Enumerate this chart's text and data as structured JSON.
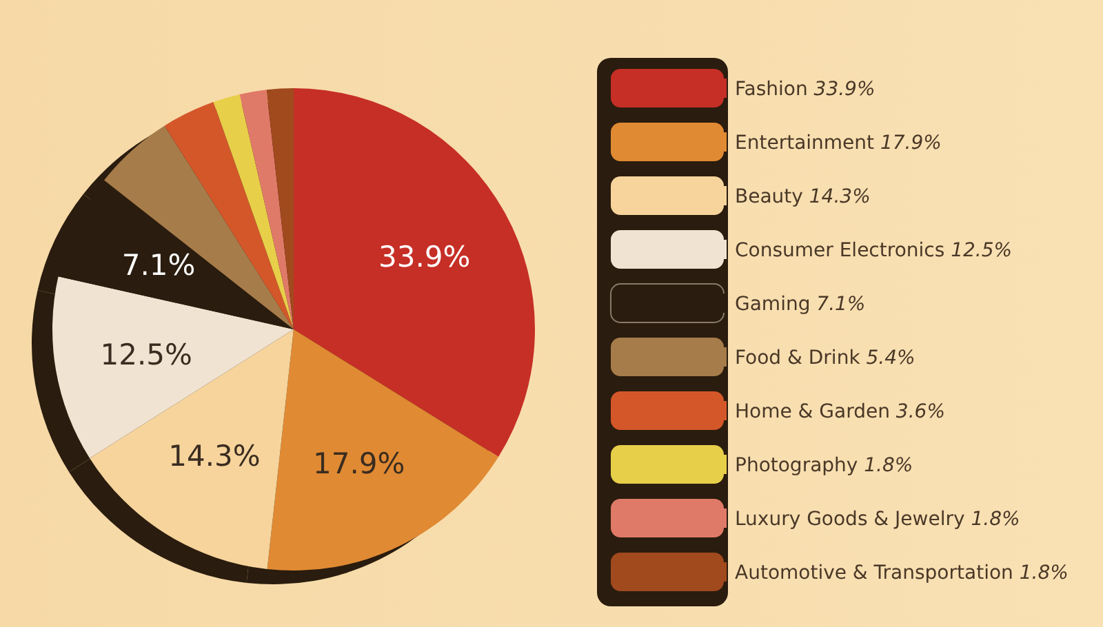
{
  "chart_data": {
    "type": "pie",
    "categories": [
      "Fashion",
      "Entertainment",
      "Beauty",
      "Consumer Electronics",
      "Gaming",
      "Food & Drink",
      "Home & Garden",
      "Photography",
      "Luxury Goods & Jewelry",
      "Automotive & Transportation"
    ],
    "values": [
      33.9,
      17.9,
      14.3,
      12.5,
      7.1,
      5.4,
      3.6,
      1.8,
      1.8,
      1.8
    ],
    "value_labels": [
      "33.9%",
      "17.9%",
      "14.3%",
      "12.5%",
      "7.1%",
      "5.4%",
      "3.6%",
      "1.8%",
      "1.8%",
      "1.8%"
    ],
    "colors": [
      "#c62f26",
      "#e08a33",
      "#f6d49c",
      "#f1e3d1",
      "#2a1c0e",
      "#a67c4a",
      "#d4572a",
      "#e8cf4a",
      "#e07a68",
      "#a04a1e"
    ],
    "legend": "right"
  }
}
